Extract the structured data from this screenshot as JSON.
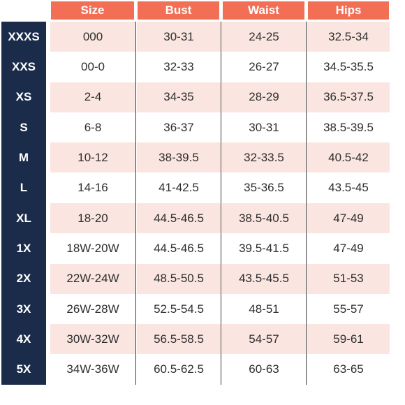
{
  "headers": [
    "Size",
    "Bust",
    "Waist",
    "Hips"
  ],
  "rows": [
    {
      "label": "XXXS",
      "size": "000",
      "bust": "30-31",
      "waist": "24-25",
      "hips": "32.5-34"
    },
    {
      "label": "XXS",
      "size": "00-0",
      "bust": "32-33",
      "waist": "26-27",
      "hips": "34.5-35.5"
    },
    {
      "label": "XS",
      "size": "2-4",
      "bust": "34-35",
      "waist": "28-29",
      "hips": "36.5-37.5"
    },
    {
      "label": "S",
      "size": "6-8",
      "bust": "36-37",
      "waist": "30-31",
      "hips": "38.5-39.5"
    },
    {
      "label": "M",
      "size": "10-12",
      "bust": "38-39.5",
      "waist": "32-33.5",
      "hips": "40.5-42"
    },
    {
      "label": "L",
      "size": "14-16",
      "bust": "41-42.5",
      "waist": "35-36.5",
      "hips": "43.5-45"
    },
    {
      "label": "XL",
      "size": "18-20",
      "bust": "44.5-46.5",
      "waist": "38.5-40.5",
      "hips": "47-49"
    },
    {
      "label": "1X",
      "size": "18W-20W",
      "bust": "44.5-46.5",
      "waist": "39.5-41.5",
      "hips": "47-49"
    },
    {
      "label": "2X",
      "size": "22W-24W",
      "bust": "48.5-50.5",
      "waist": "43.5-45.5",
      "hips": "51-53"
    },
    {
      "label": "3X",
      "size": "26W-28W",
      "bust": "52.5-54.5",
      "waist": "48-51",
      "hips": "55-57"
    },
    {
      "label": "4X",
      "size": "30W-32W",
      "bust": "56.5-58.5",
      "waist": "54-57",
      "hips": "59-61"
    },
    {
      "label": "5X",
      "size": "34W-36W",
      "bust": "60.5-62.5",
      "waist": "60-63",
      "hips": "63-65"
    }
  ],
  "colors": {
    "header": "#f26e54",
    "label_column": "#1b2b4a",
    "row_pink": "#fae5e0",
    "row_white": "#ffffff"
  }
}
